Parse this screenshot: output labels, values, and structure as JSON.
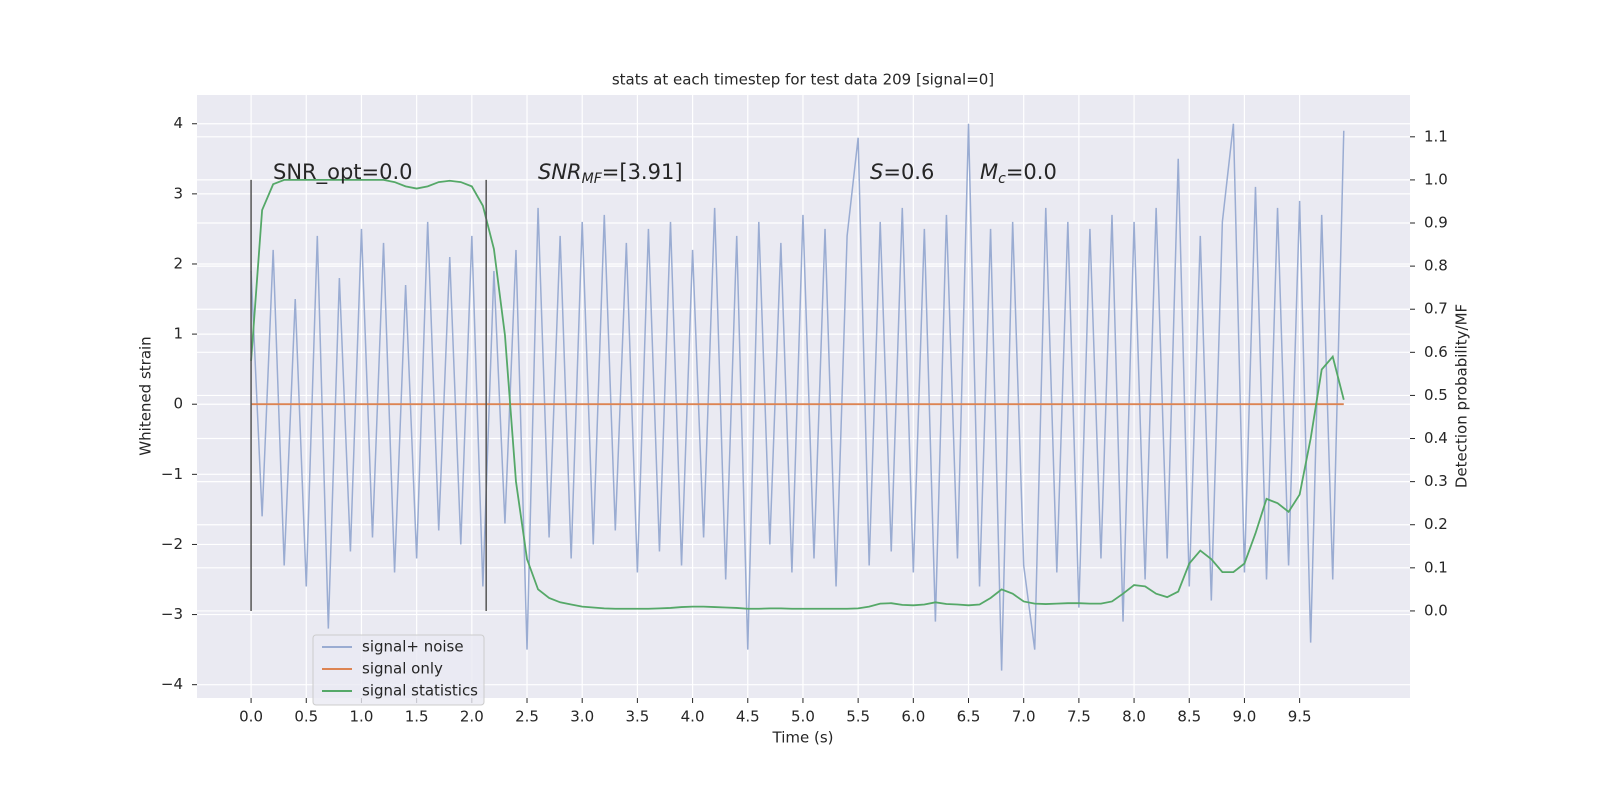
{
  "chart_data": {
    "type": "line",
    "title": "stats at each timestep for test data 209 [signal=0]",
    "xlabel": "Time (s)",
    "ylabel": "Whitened strain",
    "y2label": "Detection probability/MF",
    "grid": true,
    "legend": "lower left",
    "xlim": [
      -0.49,
      10.5
    ],
    "ylim": [
      -4.19,
      4.41
    ],
    "y2lim": [
      -0.202,
      1.197
    ],
    "xticks": [
      {
        "value": 0,
        "label": "0.0"
      },
      0.5,
      {
        "value": 1,
        "label": "1.0"
      },
      1.5,
      {
        "value": 2,
        "label": "2.0"
      },
      2.5,
      {
        "value": 3,
        "label": "3.0"
      },
      3.5,
      {
        "value": 4,
        "label": "4.0"
      },
      4.5,
      {
        "value": 5,
        "label": "5.0"
      },
      5.5,
      {
        "value": 6,
        "label": "6.0"
      },
      6.5,
      {
        "value": 7,
        "label": "7.0"
      },
      7.5,
      {
        "value": 8,
        "label": "8.0"
      },
      8.5,
      {
        "value": 9,
        "label": "9.0"
      },
      9.5
    ],
    "yticks": [
      {
        "value": -4,
        "label": "−4"
      },
      {
        "value": -3,
        "label": "−3"
      },
      {
        "value": -2,
        "label": "−2"
      },
      {
        "value": -1,
        "label": "−1"
      },
      0,
      1,
      2,
      3,
      4
    ],
    "y2ticks": [
      {
        "value": 0,
        "label": "0.0"
      },
      0.1,
      0.2,
      0.3,
      0.4,
      0.5,
      0.6,
      0.7,
      0.8,
      0.9,
      {
        "value": 1,
        "label": "1.0"
      },
      1.1
    ],
    "x": [
      0,
      0.1,
      0.2,
      0.3,
      0.4,
      0.5,
      0.6,
      0.7,
      0.8,
      0.9,
      1,
      1.1,
      1.2,
      1.3,
      1.4,
      1.5,
      1.6,
      1.7,
      1.8,
      1.9,
      2,
      2.1,
      2.2,
      2.3,
      2.4,
      2.5,
      2.6,
      2.7,
      2.8,
      2.9,
      3,
      3.1,
      3.2,
      3.3,
      3.4,
      3.5,
      3.6,
      3.7,
      3.8,
      3.9,
      4,
      4.1,
      4.2,
      4.3,
      4.4,
      4.5,
      4.6,
      4.7,
      4.8,
      4.9,
      5,
      5.1,
      5.2,
      5.3,
      5.4,
      5.5,
      5.6,
      5.7,
      5.8,
      5.9,
      6,
      6.1,
      6.2,
      6.3,
      6.4,
      6.5,
      6.6,
      6.7,
      6.8,
      6.9,
      7,
      7.1,
      7.2,
      7.3,
      7.4,
      7.5,
      7.6,
      7.7,
      7.8,
      7.9,
      8,
      8.1,
      8.2,
      8.3,
      8.4,
      8.5,
      8.6,
      8.7,
      8.8,
      8.9,
      9,
      9.1,
      9.2,
      9.3,
      9.4,
      9.5,
      9.6,
      9.7,
      9.8,
      9.9
    ],
    "series": [
      {
        "name": "signal+ noise",
        "color": "#9aacd2",
        "values": [
          1.9,
          -1.6,
          2.2,
          -2.3,
          1.5,
          -2.6,
          2.4,
          -3.2,
          1.8,
          -2.1,
          2.5,
          -1.9,
          2.3,
          -2.4,
          1.7,
          -2.2,
          2.6,
          -1.8,
          2.1,
          -2.0,
          2.4,
          -2.6,
          1.9,
          -1.7,
          2.2,
          -3.5,
          2.8,
          -1.9,
          2.4,
          -2.2,
          2.6,
          -2.0,
          2.7,
          -1.8,
          2.3,
          -2.4,
          2.5,
          -2.1,
          2.6,
          -2.3,
          2.2,
          -1.9,
          2.8,
          -2.5,
          2.4,
          -3.5,
          2.6,
          -2.0,
          2.3,
          -2.4,
          2.7,
          -2.2,
          2.5,
          -2.6,
          2.4,
          3.8,
          -2.3,
          2.6,
          -2.1,
          2.8,
          -2.4,
          2.5,
          -3.1,
          2.7,
          -2.2,
          4.0,
          -2.6,
          2.5,
          -3.8,
          2.6,
          -2.3,
          -3.5,
          2.8,
          -2.4,
          2.6,
          -2.9,
          2.5,
          -2.2,
          2.7,
          -3.1,
          2.6,
          -2.5,
          2.8,
          -2.2,
          3.5,
          -2.6,
          2.4,
          -2.8,
          2.6,
          4.0,
          -2.4,
          3.1,
          -2.5,
          2.8,
          -2.3,
          2.9,
          -3.4,
          2.7,
          -2.5,
          3.9
        ]
      },
      {
        "name": "signal only",
        "color": "#dd8452",
        "values": [
          0,
          0,
          0,
          0,
          0,
          0,
          0,
          0,
          0,
          0,
          0,
          0,
          0,
          0,
          0,
          0,
          0,
          0,
          0,
          0,
          0,
          0,
          0,
          0,
          0,
          0,
          0,
          0,
          0,
          0,
          0,
          0,
          0,
          0,
          0,
          0,
          0,
          0,
          0,
          0,
          0,
          0,
          0,
          0,
          0,
          0,
          0,
          0,
          0,
          0,
          0,
          0,
          0,
          0,
          0,
          0,
          0,
          0,
          0,
          0,
          0,
          0,
          0,
          0,
          0,
          0,
          0,
          0,
          0,
          0,
          0,
          0,
          0,
          0,
          0,
          0,
          0,
          0,
          0,
          0,
          0,
          0,
          0,
          0,
          0,
          0,
          0,
          0,
          0,
          0,
          0,
          0,
          0,
          0,
          0,
          0,
          0,
          0,
          0,
          0
        ]
      },
      {
        "name": "signal statistics",
        "color": "#55a868",
        "axis": "y2",
        "values": [
          0.58,
          0.93,
          0.99,
          1.0,
          1.0,
          1.0,
          1.0,
          1.0,
          1.0,
          1.0,
          1.0,
          1.0,
          1.0,
          0.995,
          0.985,
          0.98,
          0.985,
          0.995,
          0.998,
          0.995,
          0.985,
          0.94,
          0.84,
          0.64,
          0.3,
          0.12,
          0.05,
          0.03,
          0.02,
          0.015,
          0.01,
          0.008,
          0.006,
          0.005,
          0.005,
          0.005,
          0.005,
          0.006,
          0.007,
          0.009,
          0.01,
          0.01,
          0.009,
          0.008,
          0.007,
          0.005,
          0.005,
          0.006,
          0.006,
          0.005,
          0.005,
          0.005,
          0.005,
          0.005,
          0.005,
          0.006,
          0.01,
          0.017,
          0.018,
          0.014,
          0.013,
          0.015,
          0.02,
          0.016,
          0.015,
          0.013,
          0.015,
          0.03,
          0.05,
          0.04,
          0.022,
          0.017,
          0.016,
          0.017,
          0.018,
          0.018,
          0.017,
          0.017,
          0.022,
          0.04,
          0.06,
          0.057,
          0.04,
          0.032,
          0.045,
          0.11,
          0.14,
          0.12,
          0.09,
          0.09,
          0.11,
          0.18,
          0.26,
          0.25,
          0.23,
          0.27,
          0.4,
          0.56,
          0.59,
          0.49
        ]
      }
    ],
    "vlines": {
      "x": [
        0,
        2.13
      ],
      "ymin": -2.95,
      "ymax": 3.2
    },
    "annotations": [
      {
        "text": "SNR_opt=0.0"
      },
      {
        "italic": "SNR",
        "sub": "MF",
        "text": "=[3.91]"
      },
      {
        "italic": "S",
        "text": "=0.6"
      },
      {
        "italic": "M",
        "sub": "c",
        "text": "=0.0"
      }
    ]
  }
}
